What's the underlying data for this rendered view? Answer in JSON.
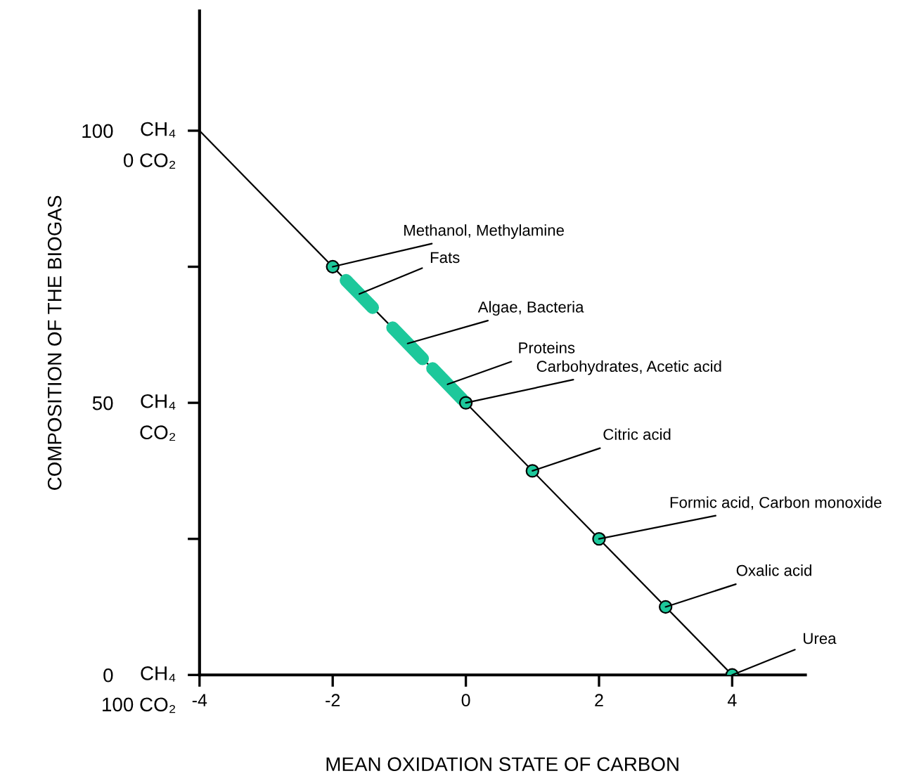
{
  "chart_data": {
    "type": "line",
    "xlabel": "MEAN OXIDATION STATE OF CARBON",
    "ylabel": "COMPOSITION OF THE BIOGAS",
    "xlim": [
      -4,
      5.1
    ],
    "xticks": [
      -4,
      -2,
      0,
      2,
      4
    ],
    "ylim": [
      0,
      122
    ],
    "yticks": [
      0,
      {
        "value": 25,
        "label": null
      },
      50,
      {
        "value": 75,
        "label": null
      },
      100
    ],
    "grid": false,
    "series": [
      {
        "x": [
          -4,
          4
        ],
        "values": [
          100,
          0
        ],
        "color": "#000000"
      },
      {
        "x": [
          -1.8,
          -1.4
        ],
        "values": [
          72.5,
          67.5
        ],
        "color": "#1dc89b"
      },
      {
        "x": [
          -1.1,
          -0.65
        ],
        "values": [
          63.8,
          58.1
        ],
        "color": "#1dc89b"
      },
      {
        "x": [
          -0.5,
          -0.05
        ],
        "values": [
          56.3,
          50.6
        ],
        "color": "#1dc89b"
      },
      {
        "type": "scatter",
        "x": [
          -2,
          0,
          1,
          2,
          3,
          4
        ],
        "values": [
          75,
          50,
          37.5,
          25,
          12.5,
          0
        ],
        "color": "#1dc89b",
        "marker": "circle"
      }
    ],
    "annotations": [
      "CH₄",
      "0 CO₂",
      "CH₄",
      "CO₂",
      "CH₄",
      "100 CO₂",
      {
        "text": "Methanol, Methylamine",
        "x": -2,
        "y": 75
      },
      {
        "text": "Fats",
        "x": -1.6,
        "y": 70
      },
      {
        "text": "Algae, Bacteria",
        "x": -0.875,
        "y": 60.9
      },
      {
        "text": "Proteins",
        "x": -0.275,
        "y": 53.4
      },
      {
        "text": "Carbohydrates, Acetic acid",
        "x": 0,
        "y": 50
      },
      {
        "text": "Citric acid",
        "x": 1,
        "y": 37.5
      },
      {
        "text": "Formic acid, Carbon monoxide",
        "x": 2,
        "y": 25
      },
      {
        "text": "Oxalic acid",
        "x": 3,
        "y": 12.5
      },
      {
        "text": "Urea",
        "x": 4,
        "y": 0
      }
    ]
  }
}
